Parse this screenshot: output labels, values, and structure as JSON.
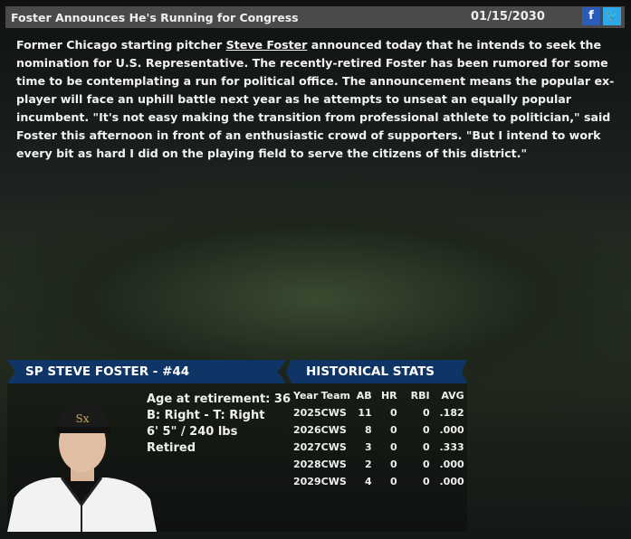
{
  "header": {
    "title": "Foster Announces He's Running for Congress",
    "date": "01/15/2030",
    "facebook_icon": "f",
    "twitter_icon": "t"
  },
  "article": {
    "before": "Former Chicago starting pitcher ",
    "link": "Steve Foster",
    "after": " announced today that he intends to seek the nomination for U.S. Representative. The recently-retired Foster has been rumored for some time to be contemplating a run for political office. The announcement means the popular ex-player will face an uphill battle next year as he attempts to unseat an equally popular incumbent. \"It's not easy making the transition from professional athlete to politician,\" said Foster this afternoon in front of an enthusiastic crowd of supporters. \"But I intend to work every bit as hard I did on the playing field to serve the citizens of this district.\""
  },
  "player": {
    "banner": "SP STEVE FOSTER - #44",
    "lines": [
      "Age at retirement: 36",
      "B: Right - T: Right",
      "6' 5\" / 240 lbs",
      "Retired"
    ]
  },
  "stats": {
    "banner": "HISTORICAL STATS",
    "headers": [
      "Year",
      "Team",
      "AB",
      "HR",
      "RBI",
      "AVG"
    ],
    "rows": [
      [
        "2025",
        "CWS",
        "11",
        "0",
        "0",
        ".182"
      ],
      [
        "2026",
        "CWS",
        "8",
        "0",
        "0",
        ".000"
      ],
      [
        "2027",
        "CWS",
        "3",
        "0",
        "0",
        ".333"
      ],
      [
        "2028",
        "CWS",
        "2",
        "0",
        "0",
        ".000"
      ],
      [
        "2029",
        "CWS",
        "4",
        "0",
        "0",
        ".000"
      ]
    ]
  }
}
